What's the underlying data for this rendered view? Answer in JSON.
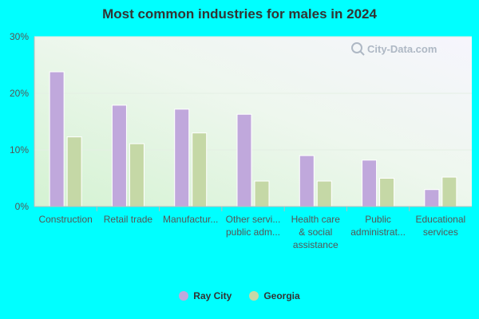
{
  "chart_data": {
    "type": "bar",
    "title": "Most common industries for males in 2024",
    "categories": [
      [
        "Construction"
      ],
      [
        "Retail trade"
      ],
      [
        "Manufactur..."
      ],
      [
        "Other servi...",
        "public adm..."
      ],
      [
        "Health care",
        "& social",
        "assistance"
      ],
      [
        "Public",
        "administrat..."
      ],
      [
        "Educational",
        "services"
      ]
    ],
    "series": [
      {
        "name": "Ray City",
        "color": "#c0a8dc",
        "values": [
          23.8,
          17.9,
          17.2,
          16.3,
          9.0,
          8.2,
          3.0
        ]
      },
      {
        "name": "Georgia",
        "color": "#c5d8a6",
        "values": [
          12.3,
          11.1,
          13.0,
          4.5,
          4.5,
          5.0,
          5.2
        ]
      }
    ],
    "yticks": [
      "0%",
      "10%",
      "20%",
      "30%"
    ],
    "ylim": [
      0,
      30
    ],
    "grid": true,
    "legend_position": "bottom"
  },
  "watermark": "City-Data.com",
  "watermark_icon": "magnifier-icon"
}
